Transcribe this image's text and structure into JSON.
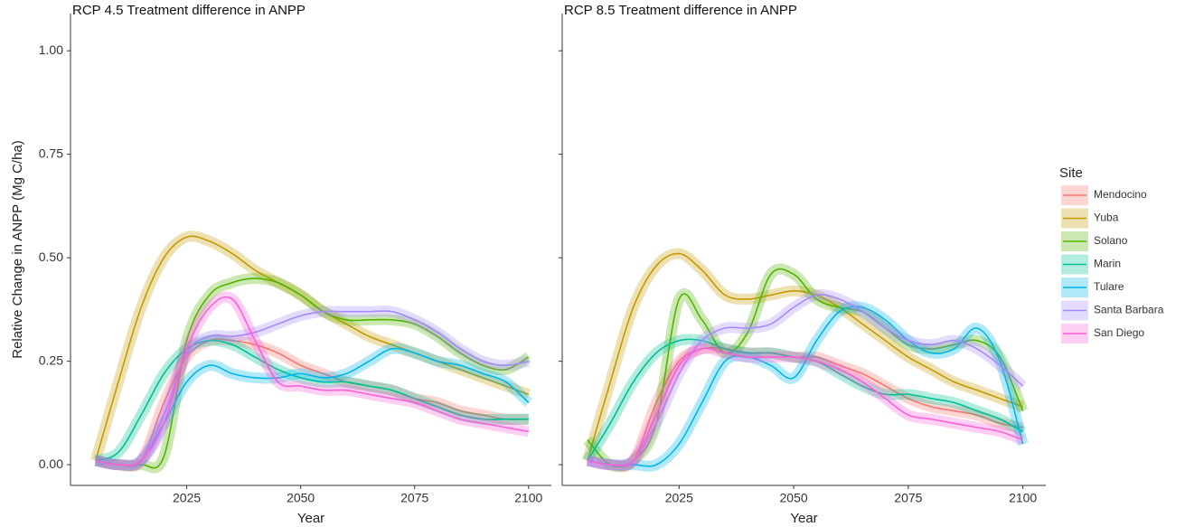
{
  "chart_data": [
    {
      "type": "line",
      "title": "RCP 4.5 Treatment difference in ANPP",
      "x_label": "Year",
      "y_label": "Relative Change in ANPP (Mg C/ha)",
      "legend_title": "Site",
      "x": [
        2005,
        2010,
        2015,
        2020,
        2025,
        2030,
        2035,
        2040,
        2045,
        2050,
        2055,
        2060,
        2065,
        2070,
        2075,
        2080,
        2085,
        2090,
        2095,
        2100
      ],
      "xlim": [
        1999.5,
        2105
      ],
      "xticks": [
        2025,
        2050,
        2075,
        2100
      ],
      "ylim": [
        -0.05,
        1.09
      ],
      "yticks": [
        {
          "value": 0,
          "label": "0.00"
        },
        {
          "value": 0.25,
          "label": "0.25"
        },
        {
          "value": 0.5,
          "label": "0.50"
        },
        {
          "value": 0.75,
          "label": "0.75"
        },
        {
          "value": 1,
          "label": "1.00"
        }
      ],
      "series": [
        {
          "name": "Mendocino",
          "color": "#F8766D",
          "values": [
            0.01,
            0,
            0.01,
            0.15,
            0.26,
            0.3,
            0.3,
            0.29,
            0.27,
            0.24,
            0.22,
            0.2,
            0.19,
            0.18,
            0.16,
            0.15,
            0.13,
            0.12,
            0.11,
            0.11
          ]
        },
        {
          "name": "Yuba",
          "color": "#C49A00",
          "values": [
            0.01,
            0.2,
            0.38,
            0.5,
            0.55,
            0.54,
            0.51,
            0.47,
            0.44,
            0.41,
            0.37,
            0.34,
            0.31,
            0.29,
            0.27,
            0.25,
            0.23,
            0.21,
            0.19,
            0.17
          ]
        },
        {
          "name": "Solano",
          "color": "#53B400",
          "values": [
            0.01,
            0,
            0,
            0.02,
            0.3,
            0.41,
            0.44,
            0.45,
            0.44,
            0.41,
            0.37,
            0.35,
            0.35,
            0.35,
            0.34,
            0.31,
            0.27,
            0.24,
            0.23,
            0.26
          ]
        },
        {
          "name": "Marin",
          "color": "#00C094",
          "values": [
            0.01,
            0.03,
            0.12,
            0.22,
            0.28,
            0.3,
            0.29,
            0.26,
            0.23,
            0.21,
            0.2,
            0.2,
            0.19,
            0.18,
            0.16,
            0.14,
            0.12,
            0.11,
            0.11,
            0.11
          ]
        },
        {
          "name": "Tulare",
          "color": "#00B6EB",
          "values": [
            0.01,
            0,
            0.01,
            0.1,
            0.2,
            0.24,
            0.22,
            0.21,
            0.21,
            0.22,
            0.21,
            0.22,
            0.25,
            0.28,
            0.27,
            0.25,
            0.24,
            0.22,
            0.2,
            0.15
          ]
        },
        {
          "name": "Santa Barbara",
          "color": "#A58AFF",
          "values": [
            0.01,
            0,
            0.01,
            0.12,
            0.27,
            0.31,
            0.31,
            0.32,
            0.34,
            0.36,
            0.37,
            0.37,
            0.37,
            0.37,
            0.35,
            0.32,
            0.28,
            0.25,
            0.24,
            0.25
          ]
        },
        {
          "name": "San Diego",
          "color": "#FB61D7",
          "values": [
            0.01,
            0,
            0.01,
            0.1,
            0.28,
            0.38,
            0.4,
            0.3,
            0.2,
            0.19,
            0.18,
            0.18,
            0.17,
            0.16,
            0.15,
            0.13,
            0.11,
            0.1,
            0.09,
            0.08
          ]
        }
      ]
    },
    {
      "type": "line",
      "title": "RCP 8.5 Treatment difference in ANPP",
      "x_label": "Year",
      "x": [
        2005,
        2010,
        2015,
        2020,
        2025,
        2030,
        2035,
        2040,
        2045,
        2050,
        2055,
        2060,
        2065,
        2070,
        2075,
        2080,
        2085,
        2090,
        2095,
        2100
      ],
      "xlim": [
        1999.5,
        2105
      ],
      "xticks": [
        2025,
        2050,
        2075,
        2100
      ],
      "ylim": [
        -0.05,
        1.09
      ],
      "yticks": [
        0,
        0.25,
        0.5,
        0.75,
        1
      ],
      "series": [
        {
          "name": "Mendocino",
          "color": "#F8766D",
          "values": [
            0.01,
            0,
            0.01,
            0.15,
            0.25,
            0.28,
            0.28,
            0.27,
            0.27,
            0.26,
            0.26,
            0.24,
            0.22,
            0.19,
            0.16,
            0.14,
            0.13,
            0.12,
            0.1,
            0.09
          ]
        },
        {
          "name": "Yuba",
          "color": "#C49A00",
          "values": [
            0.01,
            0.2,
            0.38,
            0.48,
            0.51,
            0.47,
            0.41,
            0.4,
            0.41,
            0.42,
            0.41,
            0.38,
            0.34,
            0.3,
            0.26,
            0.23,
            0.2,
            0.18,
            0.16,
            0.14
          ]
        },
        {
          "name": "Solano",
          "color": "#53B400",
          "values": [
            0.06,
            0,
            0.01,
            0.1,
            0.4,
            0.35,
            0.27,
            0.32,
            0.46,
            0.46,
            0.4,
            0.38,
            0.37,
            0.33,
            0.29,
            0.28,
            0.29,
            0.3,
            0.26,
            0.13
          ]
        },
        {
          "name": "Marin",
          "color": "#00C094",
          "values": [
            0.01,
            0.1,
            0.2,
            0.27,
            0.3,
            0.3,
            0.28,
            0.27,
            0.27,
            0.26,
            0.25,
            0.22,
            0.19,
            0.17,
            0.17,
            0.16,
            0.15,
            0.13,
            0.11,
            0.08
          ]
        },
        {
          "name": "Tulare",
          "color": "#00B6EB",
          "values": [
            0.01,
            0,
            0,
            0,
            0.05,
            0.15,
            0.25,
            0.26,
            0.24,
            0.21,
            0.3,
            0.37,
            0.38,
            0.35,
            0.3,
            0.27,
            0.28,
            0.33,
            0.25,
            0.05
          ]
        },
        {
          "name": "Santa Barbara",
          "color": "#A58AFF",
          "values": [
            0.01,
            0,
            0.01,
            0.1,
            0.22,
            0.3,
            0.33,
            0.33,
            0.34,
            0.38,
            0.41,
            0.4,
            0.37,
            0.33,
            0.3,
            0.29,
            0.3,
            0.28,
            0.24,
            0.19
          ]
        },
        {
          "name": "San Diego",
          "color": "#FB61D7",
          "values": [
            0.01,
            0,
            0.01,
            0.12,
            0.24,
            0.28,
            0.27,
            0.26,
            0.26,
            0.26,
            0.25,
            0.23,
            0.2,
            0.16,
            0.12,
            0.11,
            0.1,
            0.09,
            0.08,
            0.06
          ]
        }
      ]
    }
  ]
}
